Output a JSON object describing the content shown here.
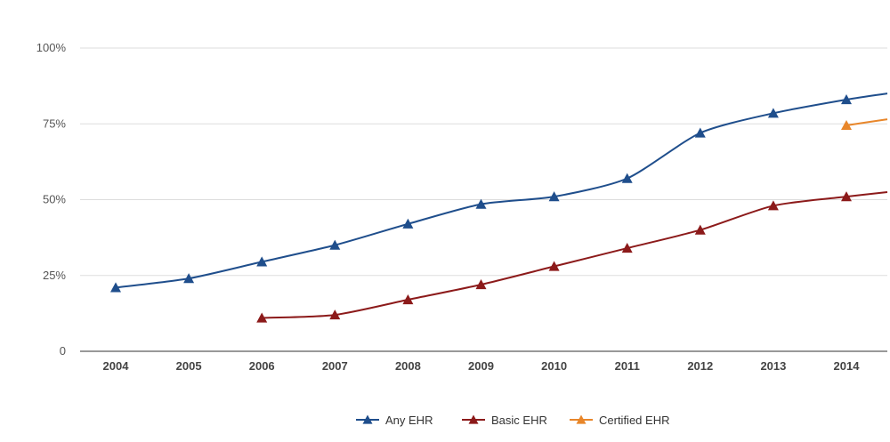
{
  "chart_data": {
    "type": "line",
    "title": "",
    "xlabel": "",
    "ylabel": "",
    "categories": [
      "2004",
      "2005",
      "2006",
      "2007",
      "2008",
      "2009",
      "2010",
      "2011",
      "2012",
      "2013",
      "2014"
    ],
    "ylim": [
      0,
      100
    ],
    "y_ticks": [
      {
        "value": 0,
        "label": "0"
      },
      {
        "value": 25,
        "label": "25%"
      },
      {
        "value": 50,
        "label": "50%"
      },
      {
        "value": 75,
        "label": "75%"
      },
      {
        "value": 100,
        "label": "100%"
      }
    ],
    "grid": true,
    "legend_position": "bottom",
    "series": [
      {
        "name": "Any EHR",
        "color": "#1f4e8c",
        "values": [
          21,
          24,
          29.5,
          35,
          42,
          48.5,
          51,
          57,
          72,
          78.5,
          83
        ],
        "trailing_value": 85
      },
      {
        "name": "Basic EHR",
        "color": "#8c1a1a",
        "values": [
          null,
          null,
          11,
          12,
          17,
          22,
          28,
          34,
          40,
          48,
          51
        ],
        "trailing_value": 52.5
      },
      {
        "name": "Certified EHR",
        "color": "#e8862a",
        "values": [
          null,
          null,
          null,
          null,
          null,
          null,
          null,
          null,
          null,
          null,
          74.5
        ],
        "trailing_value": 76.5
      }
    ]
  }
}
